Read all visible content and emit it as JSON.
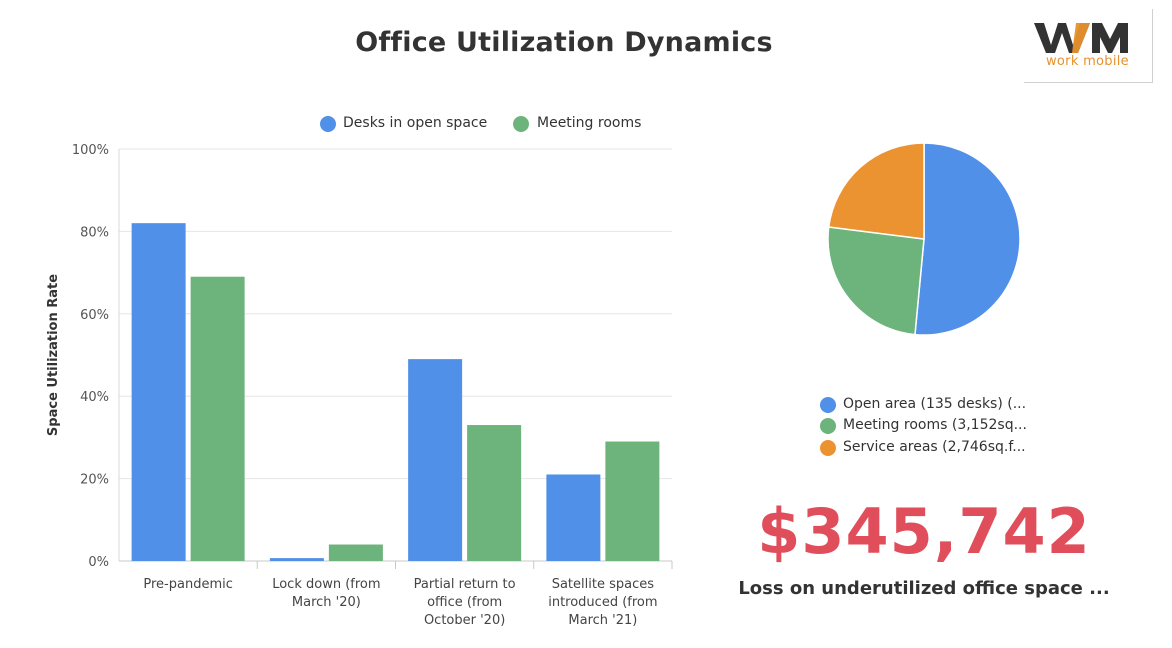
{
  "title": "Office Utilization Dynamics",
  "logo": {
    "mark": "WM",
    "subtitle": "work mobile"
  },
  "colors": {
    "blue": "#5090e8",
    "green": "#6db37c",
    "orange": "#ec9331",
    "kpi": "#e04e5b"
  },
  "chart_data": [
    {
      "type": "bar",
      "ylabel": "Space Utilization Rate",
      "ylim": [
        0,
        100
      ],
      "yticks": [
        "0%",
        "20%",
        "40%",
        "60%",
        "80%",
        "100%"
      ],
      "categories": [
        [
          "Pre-pandemic"
        ],
        [
          "Lock down (from",
          "March '20)"
        ],
        [
          "Partial return to",
          "office (from",
          "October '20)"
        ],
        [
          "Satellite spaces",
          "introduced (from",
          "March '21)"
        ]
      ],
      "series": [
        {
          "name": "Desks in open space",
          "color": "#5090e8",
          "values": [
            82,
            0.7,
            49,
            21
          ]
        },
        {
          "name": "Meeting rooms",
          "color": "#6db37c",
          "values": [
            69,
            4,
            33,
            29
          ]
        }
      ],
      "legend": "top",
      "grid": true
    },
    {
      "type": "pie",
      "slices": [
        {
          "label": "Open area (135 desks) (...",
          "value": 51.5,
          "color": "#5090e8"
        },
        {
          "label": "Meeting rooms (3,152sq...",
          "value": 25.5,
          "color": "#6db37c"
        },
        {
          "label": "Service areas (2,746sq.f...",
          "value": 23.0,
          "color": "#ec9331"
        }
      ],
      "legend": "bottom"
    }
  ],
  "kpi": {
    "value": "$345,742",
    "label": "Loss on underutilized office space ..."
  }
}
